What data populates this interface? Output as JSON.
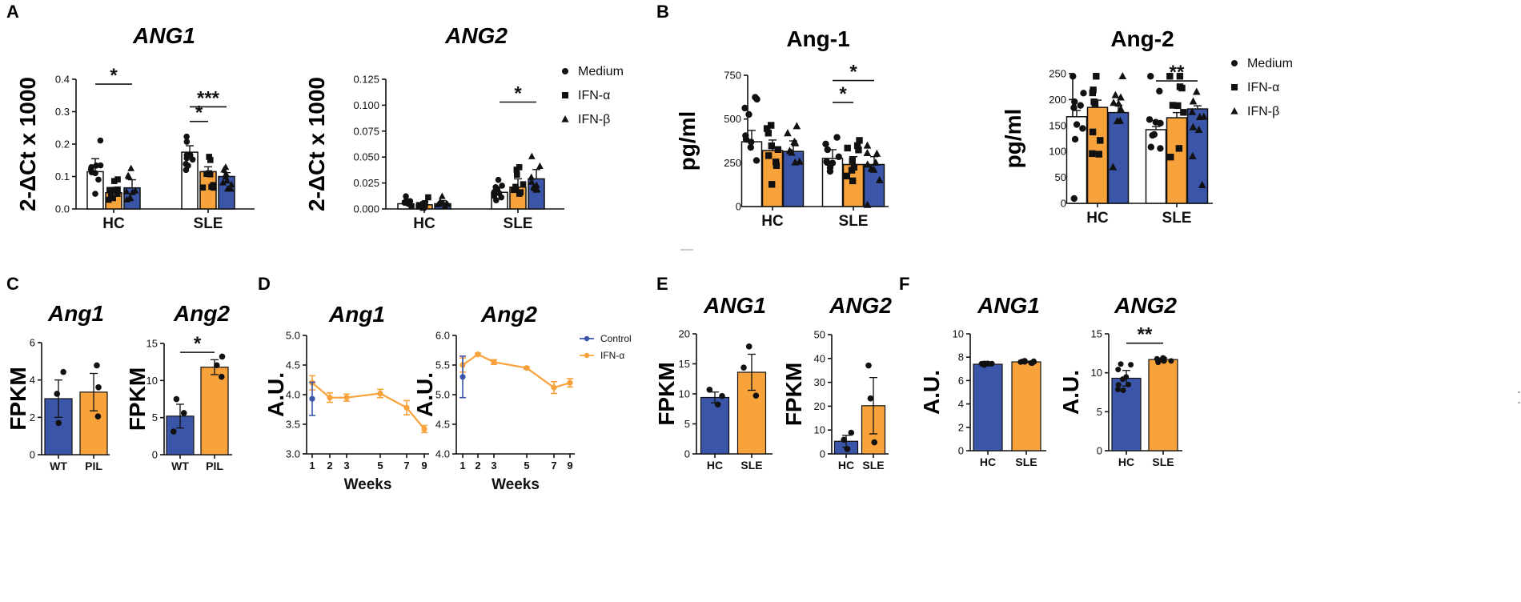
{
  "colors": {
    "medium": "#ffffff",
    "ifn_alpha": "#f7a23b",
    "ifn_beta": "#3b56a9",
    "control": "#3b56a9",
    "line_ifn": "#f7a23b",
    "axis": "#111111"
  },
  "chart_data": [
    {
      "id": "A-ANG1",
      "panel": "A",
      "type": "bar",
      "title": "ANG1",
      "title_italic": true,
      "ylabel": "2-ΔCt x 1000",
      "ylim": [
        0,
        0.4
      ],
      "yticks": [
        "0.0",
        "0.1",
        "0.2",
        "0.3",
        "0.4"
      ],
      "ytick_values": [
        0,
        0.1,
        0.2,
        0.3,
        0.4
      ],
      "categories": [
        "HC",
        "SLE"
      ],
      "series": [
        {
          "name": "Medium",
          "marker": "circle",
          "values": [
            0.115,
            0.175
          ],
          "errors": [
            0.04,
            0.02
          ]
        },
        {
          "name": "IFN-α",
          "marker": "square",
          "values": [
            0.05,
            0.115
          ],
          "errors": [
            0.015,
            0.015
          ]
        },
        {
          "name": "IFN-β",
          "marker": "triangle",
          "values": [
            0.065,
            0.1
          ],
          "errors": [
            0.025,
            0.012
          ]
        }
      ],
      "significance": [
        {
          "label": "*",
          "from": [
            0,
            0
          ],
          "to": [
            0,
            2
          ],
          "y": 0.385
        },
        {
          "label": "*",
          "from": [
            1,
            0
          ],
          "to": [
            1,
            1
          ],
          "y": 0.27
        },
        {
          "label": "***",
          "from": [
            1,
            0
          ],
          "to": [
            1,
            2
          ],
          "y": 0.315
        }
      ]
    },
    {
      "id": "A-ANG2",
      "panel": "",
      "type": "bar",
      "title": "ANG2",
      "title_italic": true,
      "ylabel": "2-ΔCt x 1000",
      "ylim": [
        0,
        0.125
      ],
      "yticks": [
        "0.000",
        "0.025",
        "0.050",
        "0.075",
        "0.100",
        "0.125"
      ],
      "ytick_values": [
        0,
        0.025,
        0.05,
        0.075,
        0.1,
        0.125
      ],
      "categories": [
        "HC",
        "SLE"
      ],
      "series": [
        {
          "name": "Medium",
          "marker": "circle",
          "values": [
            0.005,
            0.016
          ],
          "errors": [
            0.003,
            0.005
          ]
        },
        {
          "name": "IFN-α",
          "marker": "square",
          "values": [
            0.004,
            0.021
          ],
          "errors": [
            0.003,
            0.008
          ]
        },
        {
          "name": "IFN-β",
          "marker": "triangle",
          "values": [
            0.005,
            0.029
          ],
          "errors": [
            0.003,
            0.009
          ]
        }
      ],
      "significance": [
        {
          "label": "*",
          "from": [
            1,
            0
          ],
          "to": [
            1,
            2
          ],
          "y": 0.103
        }
      ],
      "legend": {
        "placement": "right",
        "entries": [
          {
            "marker": "circle",
            "label": "Medium"
          },
          {
            "marker": "square",
            "label": "IFN-α"
          },
          {
            "marker": "triangle",
            "label": "IFN-β"
          }
        ]
      }
    },
    {
      "id": "B-Ang-1",
      "panel": "B",
      "type": "bar",
      "title": "Ang-1",
      "title_italic": false,
      "ylabel": "pg/ml",
      "ylim": [
        0,
        750
      ],
      "yticks": [
        "0",
        "250",
        "500",
        "750"
      ],
      "ytick_values": [
        0,
        250,
        500,
        750
      ],
      "categories": [
        "HC",
        "SLE"
      ],
      "series": [
        {
          "name": "Medium",
          "marker": "circle",
          "values": [
            370,
            275
          ],
          "errors": [
            65,
            50
          ]
        },
        {
          "name": "IFN-α",
          "marker": "square",
          "values": [
            320,
            240
          ],
          "errors": [
            60,
            45
          ]
        },
        {
          "name": "IFN-β",
          "marker": "triangle",
          "values": [
            315,
            240
          ],
          "errors": [
            60,
            45
          ]
        }
      ],
      "significance": [
        {
          "label": "*",
          "from": [
            1,
            0
          ],
          "to": [
            1,
            1
          ],
          "y": 595
        },
        {
          "label": "*",
          "from": [
            1,
            0
          ],
          "to": [
            1,
            2
          ],
          "y": 720
        }
      ]
    },
    {
      "id": "B-Ang-2",
      "panel": "",
      "type": "bar",
      "title": "Ang-2",
      "title_italic": false,
      "ylabel": "pg/ml",
      "ylim": [
        0,
        250
      ],
      "yticks": [
        "0",
        "50",
        "100",
        "150",
        "200",
        "250"
      ],
      "ytick_values": [
        0,
        50,
        100,
        150,
        200,
        250
      ],
      "categories": [
        "HC",
        "SLE"
      ],
      "series": [
        {
          "name": "Medium",
          "marker": "circle",
          "values": [
            167,
            142
          ],
          "errors": [
            12,
            6
          ]
        },
        {
          "name": "IFN-α",
          "marker": "square",
          "values": [
            185,
            165
          ],
          "errors": [
            14,
            10
          ]
        },
        {
          "name": "IFN-β",
          "marker": "triangle",
          "values": [
            175,
            182
          ],
          "errors": [
            14,
            6
          ]
        }
      ],
      "significance": [
        {
          "label": "**",
          "from": [
            1,
            0
          ],
          "to": [
            1,
            2
          ],
          "y": 236
        }
      ],
      "legend": {
        "placement": "right",
        "entries": [
          {
            "marker": "circle",
            "label": "Medium"
          },
          {
            "marker": "square",
            "label": "IFN-α"
          },
          {
            "marker": "triangle",
            "label": "IFN-β"
          }
        ]
      }
    },
    {
      "id": "C-Ang1",
      "panel": "C",
      "type": "bar",
      "title": "Ang1",
      "title_italic": true,
      "ylabel": "FPKM",
      "ylim": [
        0,
        6
      ],
      "yticks": [
        "0",
        "2",
        "4",
        "6"
      ],
      "ytick_values": [
        0,
        2,
        4,
        6
      ],
      "categories": [
        "WT",
        "PIL"
      ],
      "bars": [
        {
          "category": "WT",
          "value": 3.0,
          "error": 1.0,
          "color_key": "ifn_beta"
        },
        {
          "category": "PIL",
          "value": 3.35,
          "error": 1.0,
          "color_key": "ifn_alpha"
        }
      ],
      "significance": []
    },
    {
      "id": "C-Ang2",
      "panel": "",
      "type": "bar",
      "title": "Ang2",
      "title_italic": true,
      "ylabel": "FPKM",
      "ylim": [
        0,
        15
      ],
      "yticks": [
        "0",
        "5",
        "10",
        "15"
      ],
      "ytick_values": [
        0,
        5,
        10,
        15
      ],
      "categories": [
        "WT",
        "PIL"
      ],
      "bars": [
        {
          "category": "WT",
          "value": 5.2,
          "error": 1.6,
          "color_key": "ifn_beta"
        },
        {
          "category": "PIL",
          "value": 11.8,
          "error": 1.0,
          "color_key": "ifn_alpha"
        }
      ],
      "significance": [
        {
          "label": "*",
          "from": 0,
          "to": 1,
          "y": 13.8
        }
      ]
    },
    {
      "id": "D-Ang1",
      "panel": "D",
      "type": "line",
      "title": "Ang1",
      "title_italic": true,
      "ylabel": "A.U.",
      "xlabel": "Weeks",
      "ylim": [
        3.0,
        5.0
      ],
      "yticks": [
        "3.0",
        "3.5",
        "4.0",
        "4.5",
        "5.0"
      ],
      "ytick_values": [
        3.0,
        3.5,
        4.0,
        4.5,
        5.0
      ],
      "x": [
        1,
        2,
        3,
        5,
        7,
        9
      ],
      "xticks": [
        "1",
        "2",
        "3",
        "5",
        "7",
        "9"
      ],
      "series": [
        {
          "name": "Control",
          "color_key": "control",
          "x": [
            1
          ],
          "y": [
            3.93
          ],
          "errors": [
            0.28
          ]
        },
        {
          "name": "IFN-α",
          "color_key": "line_ifn",
          "x": [
            1,
            2,
            3,
            5,
            7,
            9
          ],
          "y": [
            4.2,
            3.95,
            3.95,
            4.02,
            3.78,
            3.42
          ],
          "errors": [
            0.12,
            0.08,
            0.06,
            0.07,
            0.12,
            0.06
          ]
        }
      ]
    },
    {
      "id": "D-Ang2",
      "panel": "",
      "type": "line",
      "title": "Ang2",
      "title_italic": true,
      "ylabel": "A.U.",
      "xlabel": "Weeks",
      "ylim": [
        4.0,
        6.0
      ],
      "yticks": [
        "4.0",
        "4.5",
        "5.0",
        "5.5",
        "6.0"
      ],
      "ytick_values": [
        4.0,
        4.5,
        5.0,
        5.5,
        6.0
      ],
      "x": [
        1,
        2,
        3,
        5,
        7,
        9
      ],
      "xticks": [
        "1",
        "2",
        "3",
        "5",
        "7",
        "9"
      ],
      "series": [
        {
          "name": "Control",
          "color_key": "control",
          "x": [
            1
          ],
          "y": [
            5.3
          ],
          "errors": [
            0.35
          ]
        },
        {
          "name": "IFN-α",
          "color_key": "line_ifn",
          "x": [
            1,
            2,
            3,
            5,
            7,
            9
          ],
          "y": [
            5.5,
            5.68,
            5.55,
            5.45,
            5.12,
            5.2
          ],
          "errors": [
            0.12,
            0.02,
            0.04,
            0.02,
            0.1,
            0.07
          ]
        }
      ],
      "legend": {
        "placement": "right",
        "entries": [
          {
            "label": "Control",
            "color_key": "control"
          },
          {
            "label": "IFN-α",
            "color_key": "line_ifn"
          }
        ]
      }
    },
    {
      "id": "E-ANG1",
      "panel": "E",
      "type": "bar",
      "title": "ANG1",
      "title_italic": true,
      "ylabel": "FPKM",
      "ylim": [
        0,
        20
      ],
      "yticks": [
        "0",
        "5",
        "10",
        "15",
        "20"
      ],
      "ytick_values": [
        0,
        5,
        10,
        15,
        20
      ],
      "categories": [
        "HC",
        "SLE"
      ],
      "bars": [
        {
          "category": "HC",
          "value": 9.4,
          "error": 0.9,
          "color_key": "ifn_beta"
        },
        {
          "category": "SLE",
          "value": 13.6,
          "error": 3.0,
          "color_key": "ifn_alpha"
        }
      ],
      "significance": []
    },
    {
      "id": "E-ANG2",
      "panel": "",
      "type": "bar",
      "title": "ANG2",
      "title_italic": true,
      "ylabel": "FPKM",
      "ylim": [
        0,
        50
      ],
      "yticks": [
        "0",
        "10",
        "20",
        "30",
        "40",
        "50"
      ],
      "ytick_values": [
        0,
        10,
        20,
        30,
        40,
        50
      ],
      "categories": [
        "HC",
        "SLE"
      ],
      "bars": [
        {
          "category": "HC",
          "value": 5.3,
          "error": 2.5,
          "color_key": "ifn_beta"
        },
        {
          "category": "SLE",
          "value": 20.2,
          "error": 11.8,
          "color_key": "ifn_alpha"
        }
      ],
      "significance": []
    },
    {
      "id": "F-ANG1",
      "panel": "F",
      "type": "bar",
      "title": "ANG1",
      "title_italic": true,
      "ylabel": "A.U.",
      "ylim": [
        0,
        10
      ],
      "yticks": [
        "0",
        "2",
        "4",
        "6",
        "8",
        "10"
      ],
      "ytick_values": [
        0,
        2,
        4,
        6,
        8,
        10
      ],
      "categories": [
        "HC",
        "SLE"
      ],
      "bars": [
        {
          "category": "HC",
          "value": 7.4,
          "error": 0.05,
          "color_key": "ifn_beta"
        },
        {
          "category": "SLE",
          "value": 7.6,
          "error": 0.06,
          "color_key": "ifn_alpha"
        }
      ],
      "significance": []
    },
    {
      "id": "F-ANG2",
      "panel": "",
      "type": "bar",
      "title": "ANG2",
      "title_italic": true,
      "ylabel": "A.U.",
      "ylim": [
        0,
        15
      ],
      "yticks": [
        "0",
        "5",
        "10",
        "15"
      ],
      "ytick_values": [
        0,
        5,
        10,
        15
      ],
      "categories": [
        "HC",
        "SLE"
      ],
      "bars": [
        {
          "category": "HC",
          "value": 9.3,
          "error": 1.0,
          "color_key": "ifn_beta"
        },
        {
          "category": "SLE",
          "value": 11.7,
          "error": 0.2,
          "color_key": "ifn_alpha"
        }
      ],
      "significance": [
        {
          "label": "**",
          "from": 0,
          "to": 1,
          "y": 13.8
        }
      ]
    }
  ]
}
